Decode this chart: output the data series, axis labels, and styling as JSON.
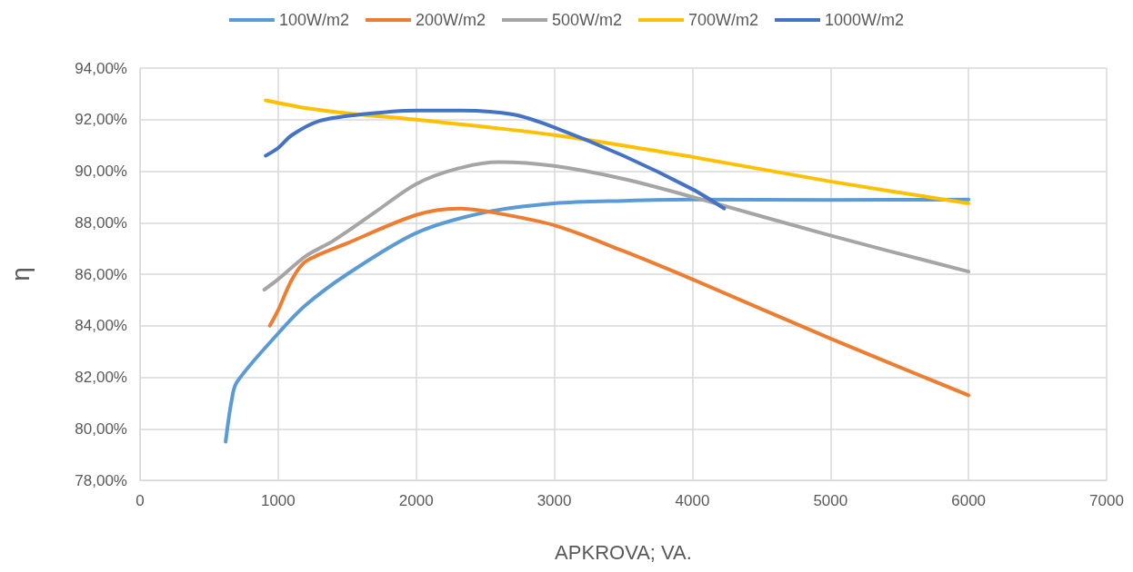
{
  "chart_data": {
    "type": "line",
    "xlabel": "APKROVA; VA.",
    "ylabel": "η",
    "legend": "top",
    "grid": true,
    "marker": "none",
    "line_style": "solid",
    "xlim": [
      0,
      7000
    ],
    "xticks": [
      0,
      1000,
      2000,
      3000,
      4000,
      5000,
      6000,
      7000
    ],
    "ylim": [
      78,
      94
    ],
    "yticks": [
      {
        "value": 78,
        "label": "78,00%"
      },
      {
        "value": 80,
        "label": "80,00%"
      },
      {
        "value": 82,
        "label": "82,00%"
      },
      {
        "value": 84,
        "label": "84,00%"
      },
      {
        "value": 86,
        "label": "86,00%"
      },
      {
        "value": 88,
        "label": "88,00%"
      },
      {
        "value": 90,
        "label": "90,00%"
      },
      {
        "value": 92,
        "label": "92,00%"
      },
      {
        "value": 94,
        "label": "94,00%"
      }
    ],
    "series": [
      {
        "name": "100W/m2",
        "color": "#5b9bd5",
        "x": [
          620,
          660,
          700,
          1000,
          1200,
          1500,
          2000,
          2500,
          3000,
          3500,
          4000,
          5000,
          6000
        ],
        "values": [
          79.5,
          81.0,
          81.8,
          83.7,
          84.8,
          86.0,
          87.6,
          88.4,
          88.75,
          88.85,
          88.9,
          88.88,
          88.9
        ]
      },
      {
        "name": "200W/m2",
        "color": "#ed7d31",
        "x": [
          940,
          1000,
          1100,
          1200,
          1500,
          2000,
          2300,
          2500,
          3000,
          3500,
          4000,
          5000,
          6000
        ],
        "values": [
          84.0,
          84.6,
          85.8,
          86.5,
          87.2,
          88.3,
          88.55,
          88.45,
          87.9,
          86.9,
          85.8,
          83.5,
          81.3
        ]
      },
      {
        "name": "500W/m2",
        "color": "#a5a5a5",
        "x": [
          900,
          1000,
          1200,
          1400,
          1700,
          2000,
          2300,
          2600,
          3000,
          3500,
          4000,
          5000,
          6000
        ],
        "values": [
          85.4,
          85.8,
          86.7,
          87.3,
          88.4,
          89.5,
          90.1,
          90.35,
          90.2,
          89.7,
          89.0,
          87.5,
          86.1
        ]
      },
      {
        "name": "700W/m2",
        "color": "#ffc000",
        "x": [
          910,
          1200,
          1500,
          2000,
          3000,
          4000,
          5000,
          6000
        ],
        "values": [
          92.75,
          92.45,
          92.25,
          92.0,
          91.4,
          90.55,
          89.6,
          88.75
        ]
      },
      {
        "name": "1000W/m2",
        "color": "#4472c4",
        "x": [
          910,
          1000,
          1100,
          1300,
          1600,
          2000,
          2300,
          2700,
          3000,
          3500,
          4000,
          4230
        ],
        "values": [
          90.6,
          90.9,
          91.4,
          91.95,
          92.2,
          92.35,
          92.35,
          92.2,
          91.7,
          90.6,
          89.3,
          88.55
        ]
      }
    ]
  }
}
